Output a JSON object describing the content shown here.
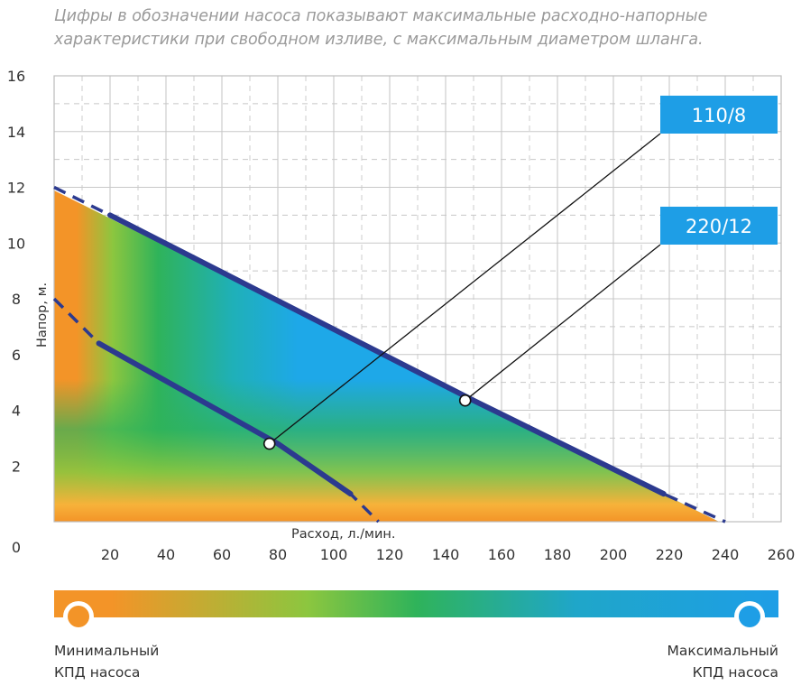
{
  "caption": {
    "line1": "Цифры в обозначении насоса показывают максимальные расходно-напорные",
    "line2": "характеристики при свободном изливе, с максимальным диаметром шланга."
  },
  "chart_data": {
    "type": "line",
    "title": "",
    "xlabel": "Расход, л./мин.",
    "ylabel": "Напор, м.",
    "xlim": [
      0,
      260
    ],
    "ylim": [
      0,
      16
    ],
    "x_ticks": [
      0,
      20,
      40,
      60,
      80,
      100,
      120,
      140,
      160,
      180,
      200,
      220,
      240,
      260
    ],
    "y_ticks": [
      2,
      4,
      6,
      8,
      10,
      12,
      14,
      16
    ],
    "grid": true,
    "background": "efficiency color map (orange = min, blue = max)",
    "series": [
      {
        "name": "110/8",
        "x": [
          0,
          16,
          80,
          106,
          116
        ],
        "y": [
          8.0,
          6.4,
          2.8,
          1.0,
          0.0
        ],
        "solid_range": [
          16,
          106
        ],
        "operating_point": {
          "x": 77,
          "y": 2.8
        }
      },
      {
        "name": "220/12",
        "x": [
          0,
          20,
          150,
          218,
          240
        ],
        "y": [
          12.0,
          11.0,
          4.35,
          1.0,
          0.0
        ],
        "solid_range": [
          20,
          218
        ],
        "operating_point": {
          "x": 147,
          "y": 4.35
        }
      }
    ],
    "labels": [
      "110/8",
      "220/12"
    ]
  },
  "legend": {
    "min_label_line1": "Минимальный",
    "min_label_line2": "КПД насоса",
    "max_label_line1": "Максимальный",
    "max_label_line2": "КПД насоса",
    "min_color": "#f39428",
    "max_color": "#1e9ee6"
  },
  "colors": {
    "curve": "#2c3a8f",
    "label_bg": "#1e9ee6",
    "grid": "#c8c8c8",
    "orange": "#f39428",
    "green": "#2fb35a",
    "blue": "#1ea8e8"
  }
}
